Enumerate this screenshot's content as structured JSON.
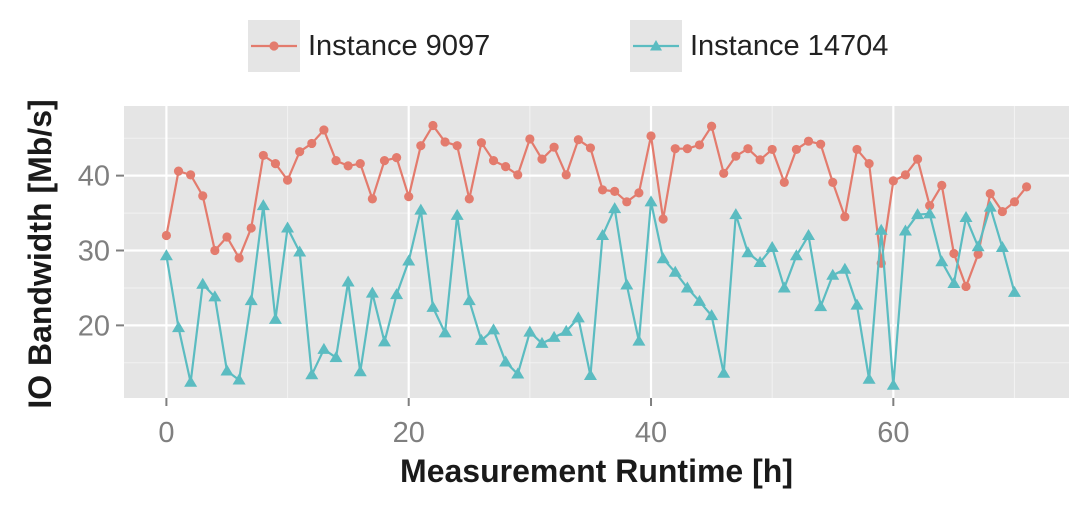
{
  "chart_data": {
    "type": "line",
    "xlabel": "Measurement Runtime [h]",
    "ylabel": "IO Bandwidth [Mb/s]",
    "xlim": [
      -3.5,
      74.5
    ],
    "ylim": [
      10.3,
      49.3
    ],
    "xticks": [
      0,
      20,
      40,
      60
    ],
    "yticks": [
      20,
      30,
      40
    ],
    "legend_position": "top",
    "grid": true,
    "series": [
      {
        "name": "Instance 9097",
        "color": "#e37b6d",
        "marker": "circle",
        "x": [
          0,
          1,
          2,
          3,
          4,
          5,
          6,
          7,
          8,
          9,
          10,
          11,
          12,
          13,
          14,
          15,
          16,
          17,
          18,
          19,
          20,
          21,
          22,
          23,
          24,
          25,
          26,
          27,
          28,
          29,
          30,
          31,
          32,
          33,
          34,
          35,
          36,
          37,
          38,
          39,
          40,
          41,
          42,
          43,
          44,
          45,
          46,
          47,
          48,
          49,
          50,
          51,
          52,
          53,
          54,
          55,
          56,
          57,
          58,
          59,
          60,
          61,
          62,
          63,
          64,
          65,
          66,
          67,
          68,
          69,
          70,
          71
        ],
        "y": [
          32.0,
          40.6,
          40.1,
          37.3,
          30.0,
          31.8,
          29.0,
          33.0,
          42.7,
          41.6,
          39.4,
          43.2,
          44.3,
          46.1,
          42.0,
          41.3,
          41.6,
          36.9,
          42.0,
          42.4,
          37.2,
          44.0,
          46.7,
          44.5,
          44.0,
          36.9,
          44.4,
          42.0,
          41.2,
          40.1,
          44.9,
          42.2,
          43.8,
          40.1,
          44.8,
          43.7,
          38.1,
          37.9,
          36.5,
          37.7,
          45.3,
          34.2,
          43.6,
          43.6,
          44.1,
          46.6,
          40.3,
          42.6,
          43.6,
          42.1,
          43.5,
          39.1,
          43.5,
          44.6,
          44.2,
          39.1,
          34.5,
          43.5,
          41.6,
          28.3,
          39.3,
          40.1,
          42.2,
          36.0,
          38.7,
          29.6,
          25.2,
          29.5,
          37.6,
          35.2,
          36.5,
          38.5
        ]
      },
      {
        "name": "Instance 14704",
        "color": "#5bbcc1",
        "marker": "triangle",
        "x": [
          0,
          1,
          2,
          3,
          4,
          5,
          6,
          7,
          8,
          9,
          10,
          11,
          12,
          13,
          14,
          15,
          16,
          17,
          18,
          19,
          20,
          21,
          22,
          23,
          24,
          25,
          26,
          27,
          28,
          29,
          30,
          31,
          32,
          33,
          34,
          35,
          36,
          37,
          38,
          39,
          40,
          41,
          42,
          43,
          44,
          45,
          46,
          47,
          48,
          49,
          50,
          51,
          52,
          53,
          54,
          55,
          56,
          57,
          58,
          59,
          60,
          61,
          62,
          63,
          64,
          65,
          66,
          67,
          68,
          69,
          70
        ],
        "y": [
          29.3,
          19.7,
          12.4,
          25.5,
          23.8,
          13.9,
          12.7,
          23.3,
          36.0,
          20.8,
          33.0,
          29.8,
          13.4,
          16.8,
          15.7,
          25.8,
          13.8,
          24.3,
          17.8,
          24.1,
          28.6,
          35.4,
          22.4,
          19.0,
          34.7,
          23.3,
          18.0,
          19.4,
          15.1,
          13.5,
          19.1,
          17.6,
          18.4,
          19.2,
          21.0,
          13.3,
          32.0,
          35.6,
          25.4,
          17.9,
          36.5,
          28.9,
          27.1,
          25.0,
          23.2,
          21.3,
          13.6,
          34.8,
          29.7,
          28.4,
          30.4,
          25.0,
          29.3,
          32.0,
          22.5,
          26.7,
          27.5,
          22.7,
          12.8,
          32.7,
          12.0,
          32.6,
          34.8,
          34.9,
          28.5,
          25.6,
          34.4,
          30.5,
          35.8,
          30.4,
          24.4
        ]
      }
    ]
  }
}
